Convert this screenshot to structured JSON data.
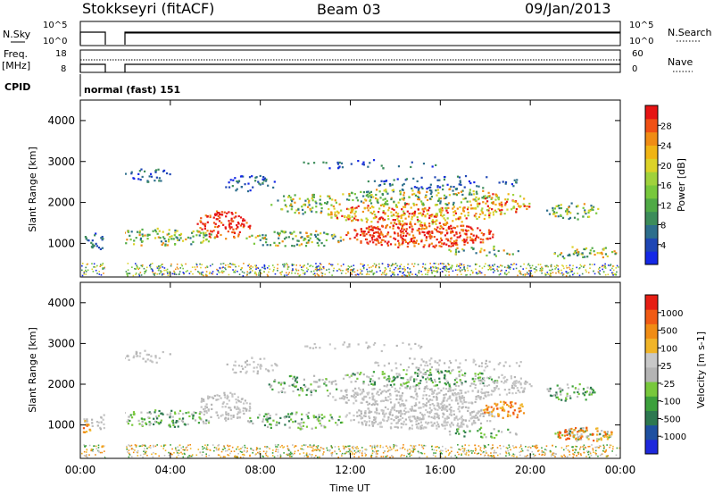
{
  "header": {
    "station": "Stokkseyri (fitACF)",
    "beam": "Beam 03",
    "date": "09/Jan/2013"
  },
  "noise_panel": {
    "left_label": "N.Sky",
    "right_label": "N.Search",
    "left_ticks": [
      "10^5",
      "10^0"
    ],
    "right_ticks": [
      "10^5",
      "10^0"
    ]
  },
  "freq_panel": {
    "left_label_1": "Freq.",
    "left_label_2": "[MHz]",
    "right_label": "Nave",
    "left_ticks": [
      "18",
      "8"
    ],
    "right_ticks": [
      "60",
      "0"
    ]
  },
  "cpid": {
    "label": "CPID",
    "value": "normal (fast) 151"
  },
  "chart_data": [
    {
      "type": "heatmap",
      "name": "power",
      "ylabel": "Slant Range [km]",
      "xlabel": "",
      "y_ticks": [
        "1000",
        "2000",
        "3000",
        "4000"
      ],
      "ylim": [
        180,
        4500
      ],
      "colorbar_label": "Power [dB]",
      "colorbar_ticks": [
        "28",
        "24",
        "20",
        "16",
        "12",
        "8",
        "4"
      ],
      "colorbar_colors": [
        "#1428e6",
        "#1e46b4",
        "#2d6e8c",
        "#3c8c5a",
        "#50aa46",
        "#78c83c",
        "#a0d23c",
        "#dcd228",
        "#f0b414",
        "#f08c14",
        "#f05014",
        "#e61414"
      ]
    },
    {
      "type": "heatmap",
      "name": "velocity",
      "ylabel": "Slant Range [km]",
      "xlabel": "Time UT",
      "y_ticks": [
        "1000",
        "2000",
        "3000",
        "4000"
      ],
      "x_ticks": [
        "00:00",
        "04:00",
        "08:00",
        "12:00",
        "16:00",
        "20:00",
        "00:00"
      ],
      "ylim": [
        180,
        4500
      ],
      "colorbar_label": "Velocity [m s-1]",
      "colorbar_ticks": [
        "1000",
        "500",
        "100",
        "25",
        "-25",
        "-100",
        "-500",
        "-1000"
      ],
      "colorbar_colors": [
        "#1e28dc",
        "#1e50a0",
        "#2d7850",
        "#3ca03c",
        "#78c83c",
        "#b4b4b4",
        "#c8c8c8",
        "#f0b428",
        "#f08c14",
        "#f05a14",
        "#e61e14"
      ]
    }
  ],
  "colors": {
    "power_red": "#e61414",
    "power_blue": "#1428e6",
    "ground_gray": "#c0c0c0"
  }
}
